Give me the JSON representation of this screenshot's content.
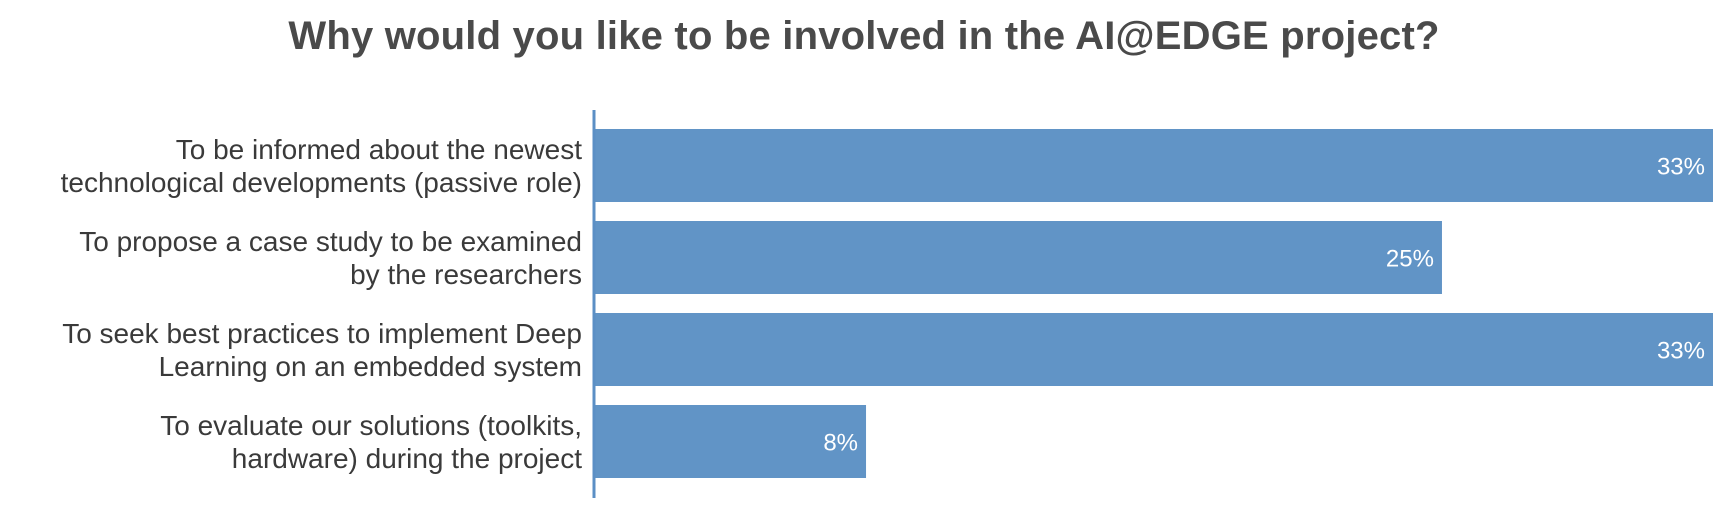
{
  "chart_data": {
    "type": "bar",
    "orientation": "horizontal",
    "title": "Why would you like to be involved in the AI@EDGE project?",
    "categories": [
      [
        "To be informed about the newest",
        "technological developments (passive role)"
      ],
      [
        "To propose a case study to be examined",
        "by the researchers"
      ],
      [
        "To seek best practices to implement Deep",
        "Learning on an embedded system"
      ],
      [
        "To evaluate our solutions (toolkits,",
        "hardware) during the project"
      ]
    ],
    "values": [
      33,
      25,
      33,
      8
    ],
    "data_labels": [
      "33%",
      "25%",
      "33%",
      "8%"
    ],
    "value_unit": "%",
    "xlim": [
      0,
      33
    ],
    "grid": false,
    "legend": "none",
    "bar_color": "#6194c6",
    "axis_color": "#5b8fc5"
  }
}
